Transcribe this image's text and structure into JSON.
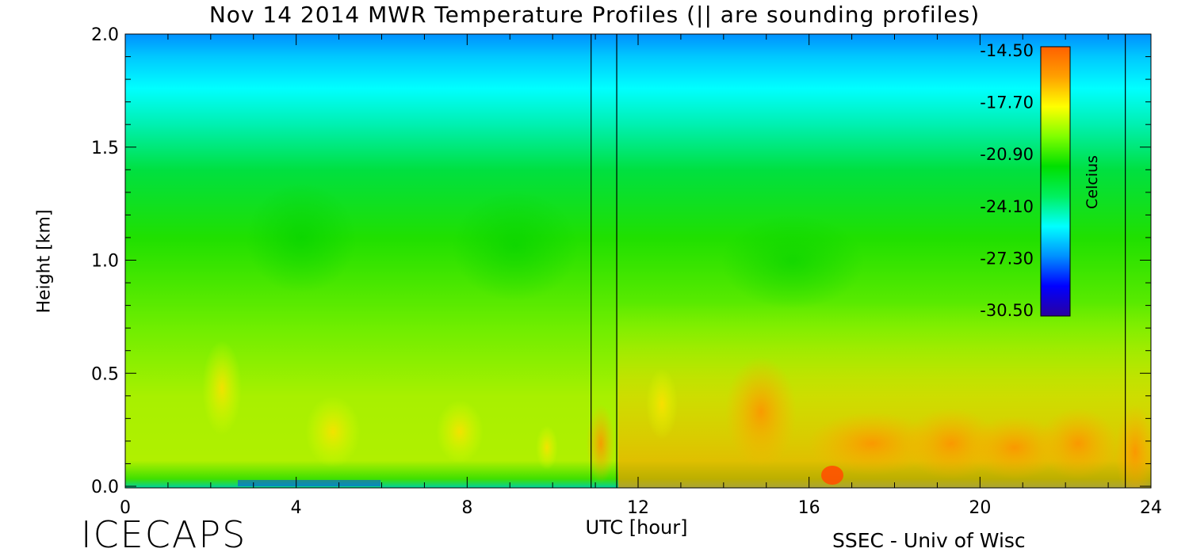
{
  "title": "Nov 14 2014 MWR Temperature Profiles (|| are sounding profiles)",
  "logo": "ICECAPS",
  "credit": "SSEC - Univ of Wisc",
  "chart_data": {
    "type": "heatmap",
    "title": "Nov 14 2014 MWR Temperature Profiles (|| are sounding profiles)",
    "xlabel": "UTC [hour]",
    "ylabel": "Height [km]",
    "xlim": [
      0,
      24
    ],
    "ylim": [
      0,
      2
    ],
    "xticks": [
      "0",
      "4",
      "8",
      "12",
      "16",
      "20",
      "24"
    ],
    "yticks": [
      "0.0",
      "0.5",
      "1.0",
      "1.5",
      "2.0"
    ],
    "sounding_times_utc": [
      10.9,
      11.5,
      23.4
    ],
    "colorbar": {
      "units": "Celcius",
      "min": -30.5,
      "max": -14.5,
      "tick_labels": [
        "-14.50",
        "-17.70",
        "-20.90",
        "-24.10",
        "-27.30",
        "-30.50"
      ],
      "colors": [
        "#2a00a0",
        "#0000ff",
        "#0090ff",
        "#00ffff",
        "#00f060",
        "#00e000",
        "#80ff00",
        "#ffff00",
        "#ffa000",
        "#ff6000"
      ]
    },
    "grid": false
  }
}
